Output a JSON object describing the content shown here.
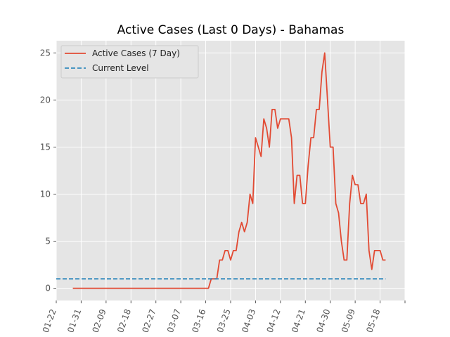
{
  "chart_data": {
    "type": "line",
    "title": "Active Cases (Last 0 Days) - Bahamas",
    "xlabel": "",
    "ylabel": "",
    "x_tick_labels": [
      "01-22",
      "01-31",
      "02-09",
      "02-18",
      "02-27",
      "03-07",
      "03-16",
      "03-25",
      "04-03",
      "04-12",
      "04-21",
      "04-30",
      "05-09",
      "05-18"
    ],
    "x_range": [
      "2020-01-22",
      "2020-05-27"
    ],
    "y_ticks": [
      0,
      5,
      10,
      15,
      20,
      25
    ],
    "ylim": [
      -1.3,
      26.3
    ],
    "grid": true,
    "legend_position": "upper-left",
    "series": [
      {
        "name": "Active Cases (7 Day)",
        "color": "#e24a33",
        "style": "solid",
        "x": [
          "2020-01-28",
          "2020-03-17",
          "2020-03-18",
          "2020-03-19",
          "2020-03-20",
          "2020-03-21",
          "2020-03-22",
          "2020-03-23",
          "2020-03-24",
          "2020-03-25",
          "2020-03-26",
          "2020-03-27",
          "2020-03-28",
          "2020-03-29",
          "2020-03-30",
          "2020-03-31",
          "2020-04-01",
          "2020-04-02",
          "2020-04-03",
          "2020-04-04",
          "2020-04-05",
          "2020-04-06",
          "2020-04-07",
          "2020-04-08",
          "2020-04-09",
          "2020-04-10",
          "2020-04-11",
          "2020-04-12",
          "2020-04-13",
          "2020-04-14",
          "2020-04-15",
          "2020-04-16",
          "2020-04-17",
          "2020-04-18",
          "2020-04-19",
          "2020-04-20",
          "2020-04-21",
          "2020-04-22",
          "2020-04-23",
          "2020-04-24",
          "2020-04-25",
          "2020-04-26",
          "2020-04-27",
          "2020-04-28",
          "2020-04-29",
          "2020-04-30",
          "2020-05-01",
          "2020-05-02",
          "2020-05-03",
          "2020-05-04",
          "2020-05-05",
          "2020-05-06",
          "2020-05-07",
          "2020-05-08",
          "2020-05-09",
          "2020-05-10",
          "2020-05-11",
          "2020-05-12",
          "2020-05-13",
          "2020-05-14",
          "2020-05-15",
          "2020-05-16",
          "2020-05-17",
          "2020-05-18",
          "2020-05-19",
          "2020-05-20"
        ],
        "y": [
          0,
          0,
          1,
          1,
          1,
          3,
          3,
          4,
          4,
          3,
          4,
          4,
          6,
          7,
          6,
          7,
          10,
          9,
          16,
          15,
          14,
          18,
          17,
          15,
          19,
          19,
          17,
          18,
          18,
          18,
          18,
          16,
          9,
          12,
          12,
          9,
          9,
          13,
          16,
          16,
          19,
          19,
          23,
          25,
          20,
          15,
          15,
          9,
          8,
          5,
          3,
          3,
          9,
          12,
          11,
          11,
          9,
          9,
          10,
          4,
          2,
          4,
          4,
          4,
          3,
          3
        ]
      },
      {
        "name": "Current Level",
        "color": "#348abd",
        "style": "dashed",
        "x": [
          "2020-01-22",
          "2020-05-20"
        ],
        "y": [
          1,
          1
        ]
      }
    ]
  }
}
